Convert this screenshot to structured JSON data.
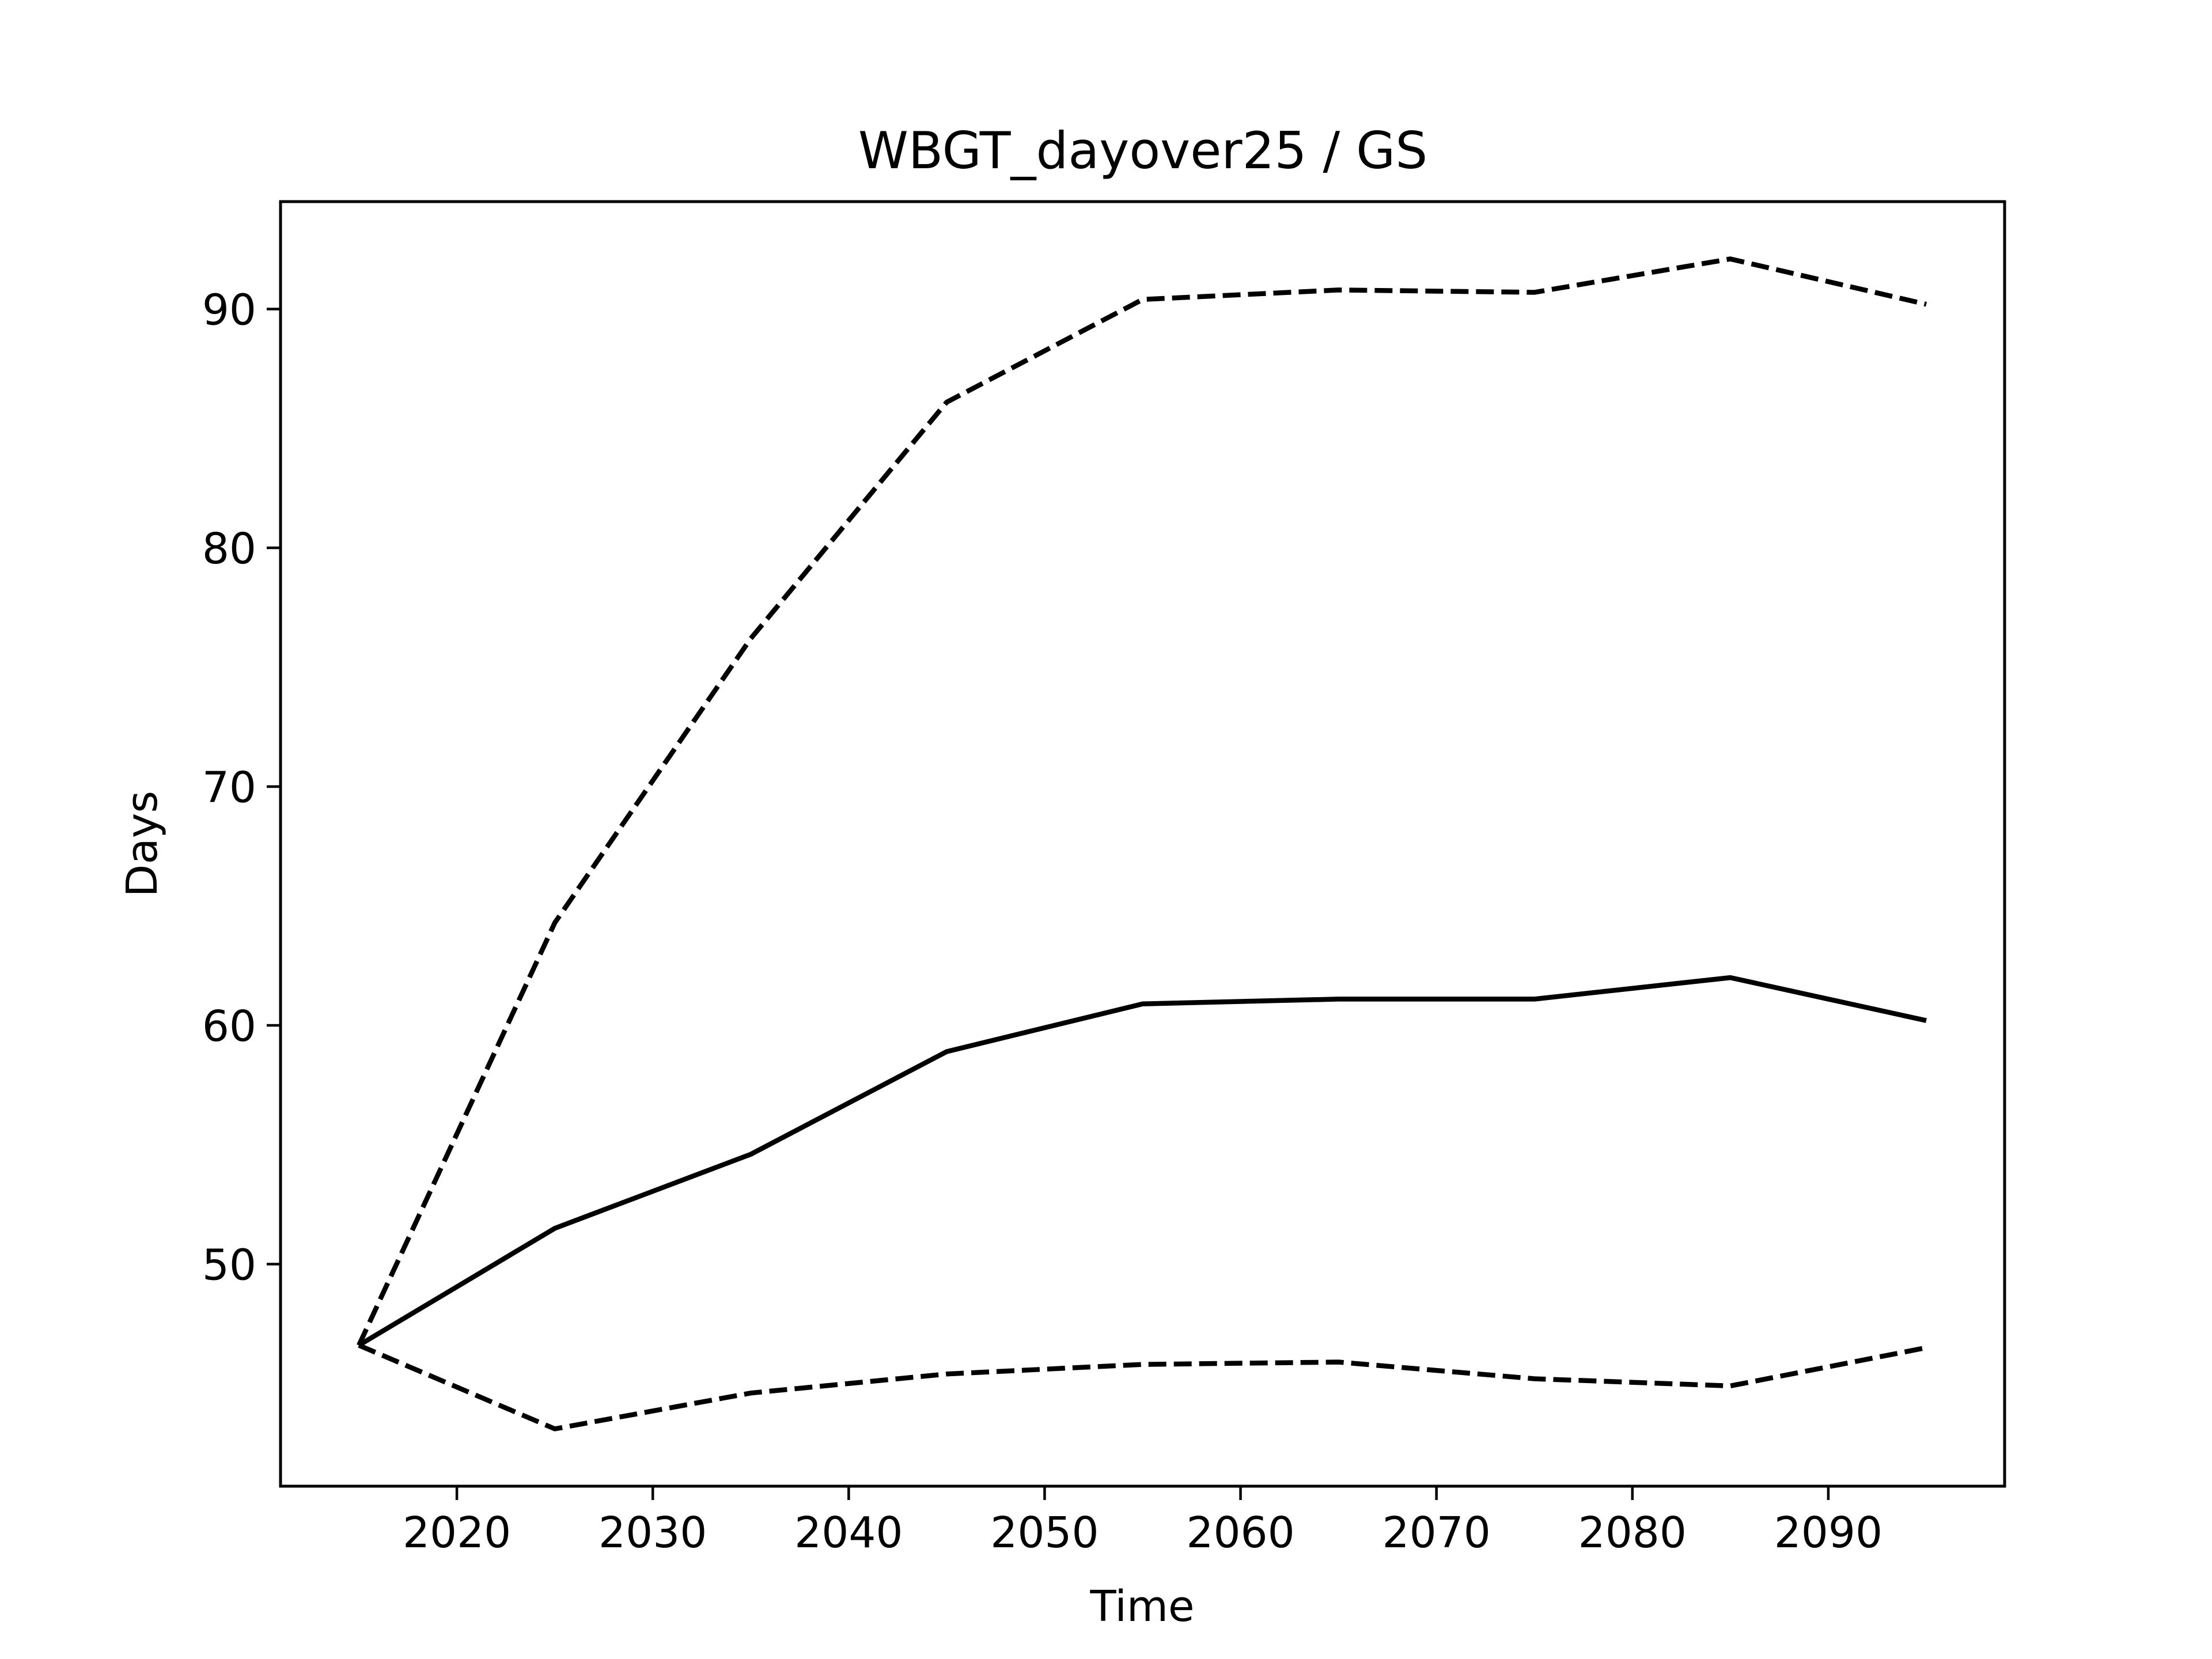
{
  "chart_data": {
    "type": "line",
    "title": "WBGT_dayover25 / GS",
    "xlabel": "Time",
    "ylabel": "Days",
    "xlim": [
      2011,
      2099
    ],
    "ylim": [
      40.7,
      94.5
    ],
    "xticks": [
      2020,
      2030,
      2040,
      2050,
      2060,
      2070,
      2080,
      2090
    ],
    "yticks": [
      50,
      60,
      70,
      80,
      90
    ],
    "grid": false,
    "x": [
      2015,
      2025,
      2035,
      2045,
      2055,
      2065,
      2075,
      2085,
      2095
    ],
    "series": [
      {
        "style": "dashed",
        "color": "#000000",
        "values": [
          46.6,
          64.3,
          76.2,
          86.1,
          90.4,
          90.8,
          90.7,
          92.1,
          90.2
        ]
      },
      {
        "style": "solid",
        "color": "#000000",
        "values": [
          46.6,
          51.5,
          54.6,
          58.9,
          60.9,
          61.1,
          61.1,
          62.0,
          60.2
        ]
      },
      {
        "style": "dashed",
        "color": "#000000",
        "values": [
          46.6,
          43.1,
          44.6,
          45.4,
          45.8,
          45.9,
          45.2,
          44.9,
          46.5
        ]
      }
    ]
  }
}
